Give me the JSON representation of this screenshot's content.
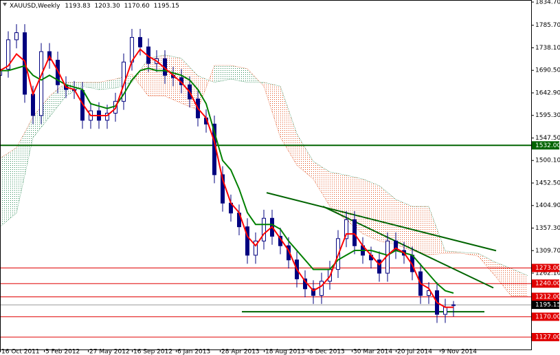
{
  "chart_data": {
    "type": "candlestick",
    "header": {
      "symbol": "XAUUSD,Weekly",
      "open": "1193.83",
      "high": "1203.30",
      "low": "1170.60",
      "close": "1195.15"
    },
    "xlim": [
      0,
      193.25
    ],
    "xticks": [
      {
        "value": 0,
        "label": "16 Oct 2011"
      },
      {
        "value": 16,
        "label": "5 Feb 2012"
      },
      {
        "value": 32,
        "label": "27 May 2012"
      },
      {
        "value": 48,
        "label": "16 Sep 2012"
      },
      {
        "value": 64,
        "label": "6 Jan 2013"
      },
      {
        "value": 80,
        "label": "28 Apr 2013"
      },
      {
        "value": 96,
        "label": "18 Aug 2013"
      },
      {
        "value": 112,
        "label": "8 Dec 2013"
      },
      {
        "value": 128,
        "label": "30 Mar 2014"
      },
      {
        "value": 144,
        "label": "20 Jul 2014"
      },
      {
        "value": 160,
        "label": "9 Nov 2014"
      }
    ],
    "ylim": [
      1100.8,
      1839.06
    ],
    "yticks": [
      {
        "value": 1834.7,
        "label": "1834.70"
      },
      {
        "value": 1785.7,
        "label": "1785.70"
      },
      {
        "value": 1738.1,
        "label": "1738.10"
      },
      {
        "value": 1690.5,
        "label": "1690.50"
      },
      {
        "value": 1642.9,
        "label": "1642.90"
      },
      {
        "value": 1595.3,
        "label": "1595.30"
      },
      {
        "value": 1547.5,
        "label": "1547.50"
      },
      {
        "value": 1500.1,
        "label": "1500.10"
      },
      {
        "value": 1452.5,
        "label": "1452.50"
      },
      {
        "value": 1404.9,
        "label": "1404.90"
      },
      {
        "value": 1357.3,
        "label": "1357.30"
      },
      {
        "value": 1309.7,
        "label": "1309.70"
      },
      {
        "value": 1262.1,
        "label": "1262.10"
      }
    ],
    "candle_color": "#00007f",
    "x": [
      0,
      3,
      6,
      9,
      12,
      15,
      18,
      21,
      24,
      27,
      30,
      33,
      36,
      39,
      42,
      45,
      48,
      51,
      54,
      57,
      60,
      63,
      66,
      69,
      72,
      75,
      78,
      81,
      84,
      87,
      90,
      93,
      96,
      99,
      102,
      105,
      108,
      111,
      114,
      117,
      120,
      123,
      126,
      129,
      132,
      135,
      138,
      141,
      144,
      147,
      150,
      153,
      156,
      159,
      162,
      165
    ],
    "open": [
      1680,
      1693,
      1755,
      1770,
      1640,
      1595,
      1730,
      1712,
      1660,
      1650,
      1648,
      1585,
      1605,
      1585,
      1600,
      1625,
      1708,
      1760,
      1740,
      1705,
      1715,
      1680,
      1675,
      1660,
      1630,
      1590,
      1577,
      1470,
      1410,
      1389,
      1360,
      1300,
      1330,
      1378,
      1340,
      1320,
      1290,
      1250,
      1229,
      1215,
      1245,
      1270,
      1335,
      1375,
      1320,
      1300,
      1290,
      1262,
      1330,
      1310,
      1300,
      1265,
      1215,
      1225,
      1175,
      1193.83
    ],
    "high": [
      1711,
      1773,
      1788,
      1788,
      1658,
      1748,
      1748,
      1730,
      1678,
      1668,
      1666,
      1623,
      1623,
      1618,
      1643,
      1726,
      1778,
      1778,
      1758,
      1733,
      1733,
      1698,
      1693,
      1678,
      1648,
      1608,
      1595,
      1488,
      1428,
      1407,
      1378,
      1348,
      1396,
      1396,
      1358,
      1338,
      1308,
      1268,
      1247,
      1263,
      1288,
      1353,
      1393,
      1393,
      1338,
      1318,
      1308,
      1348,
      1348,
      1328,
      1318,
      1283,
      1243,
      1243,
      1208,
      1203.3
    ],
    "low": [
      1662,
      1675,
      1737,
      1622,
      1577,
      1577,
      1694,
      1642,
      1632,
      1630,
      1567,
      1567,
      1567,
      1567,
      1582,
      1607,
      1690,
      1722,
      1687,
      1687,
      1662,
      1657,
      1642,
      1612,
      1572,
      1559,
      1452,
      1392,
      1371,
      1342,
      1282,
      1282,
      1312,
      1322,
      1302,
      1272,
      1232,
      1211,
      1197,
      1197,
      1227,
      1252,
      1317,
      1302,
      1282,
      1272,
      1244,
      1244,
      1292,
      1282,
      1247,
      1197,
      1197,
      1157,
      1157,
      1170.6
    ],
    "close": [
      1693,
      1755,
      1770,
      1640,
      1595,
      1730,
      1712,
      1660,
      1650,
      1648,
      1585,
      1605,
      1585,
      1600,
      1625,
      1708,
      1760,
      1740,
      1705,
      1715,
      1680,
      1675,
      1660,
      1630,
      1590,
      1577,
      1470,
      1410,
      1389,
      1360,
      1300,
      1330,
      1378,
      1340,
      1320,
      1290,
      1250,
      1229,
      1215,
      1245,
      1270,
      1335,
      1375,
      1320,
      1300,
      1290,
      1262,
      1330,
      1310,
      1300,
      1265,
      1215,
      1225,
      1175,
      1190,
      1195.15
    ],
    "tenkan": {
      "color": "#ff0000",
      "values": [
        1690,
        1700,
        1725,
        1710,
        1640,
        1680,
        1720,
        1690,
        1655,
        1650,
        1620,
        1595,
        1595,
        1595,
        1610,
        1660,
        1710,
        1735,
        1720,
        1710,
        1695,
        1680,
        1665,
        1645,
        1610,
        1590,
        1540,
        1460,
        1410,
        1390,
        1340,
        1320,
        1345,
        1360,
        1335,
        1310,
        1270,
        1245,
        1225,
        1235,
        1255,
        1300,
        1345,
        1345,
        1320,
        1300,
        1280,
        1300,
        1315,
        1305,
        1280,
        1240,
        1230,
        1200,
        1190,
        1190
      ]
    },
    "kijun": {
      "color": "#008000",
      "values": [
        1690,
        1690,
        1695,
        1700,
        1680,
        1670,
        1680,
        1670,
        1660,
        1655,
        1650,
        1620,
        1615,
        1610,
        1615,
        1640,
        1670,
        1690,
        1695,
        1690,
        1690,
        1685,
        1680,
        1670,
        1650,
        1620,
        1560,
        1500,
        1480,
        1440,
        1390,
        1365,
        1365,
        1365,
        1355,
        1330,
        1310,
        1290,
        1270,
        1270,
        1270,
        1290,
        1300,
        1310,
        1310,
        1310,
        1305,
        1300,
        1310,
        1305,
        1300,
        1280,
        1260,
        1240,
        1225,
        1220
      ]
    },
    "cloud": {
      "up_color": "#2e8b57",
      "down_color": "#e2501e",
      "x": [
        0,
        6,
        12,
        18,
        24,
        30,
        36,
        42,
        48,
        54,
        60,
        66,
        72,
        78,
        84,
        90,
        96,
        102,
        108,
        114,
        120,
        126,
        132,
        138,
        144,
        150,
        156,
        162,
        168,
        174,
        180,
        186,
        192
      ],
      "span_a": [
        1505,
        1527,
        1592,
        1636,
        1665,
        1665,
        1665,
        1672,
        1682,
        1636,
        1636,
        1621,
        1607,
        1701,
        1701,
        1694,
        1657,
        1549,
        1490,
        1461,
        1403,
        1374,
        1345,
        1330,
        1323,
        1309,
        1301,
        1304,
        1304,
        1298,
        1257,
        1214,
        1214
      ],
      "span_b": [
        1360,
        1389,
        1548,
        1592,
        1636,
        1657,
        1650,
        1653,
        1665,
        1716,
        1723,
        1716,
        1679,
        1665,
        1672,
        1665,
        1665,
        1657,
        1557,
        1498,
        1476,
        1469,
        1461,
        1447,
        1418,
        1403,
        1403,
        1309,
        1306,
        1304,
        1286,
        1272,
        1257
      ]
    },
    "trendlines": [
      {
        "color": "#006400",
        "x": [
          97,
          180.5
        ],
        "y": [
          1432,
          1309.5
        ]
      },
      {
        "color": "#006400",
        "x": [
          117.5,
          179.5
        ],
        "y": [
          1403,
          1231
        ]
      },
      {
        "color": "#006400",
        "x": [
          88,
          176.25
        ],
        "y": [
          1180.6,
          1180.6
        ]
      }
    ],
    "levels": [
      {
        "value": 1532,
        "label": "1532.00",
        "color": "#006400"
      },
      {
        "value": 1273,
        "label": "1273.00",
        "color": "#e00000"
      },
      {
        "value": 1240,
        "label": "1240.00",
        "color": "#e00000"
      },
      {
        "value": 1212,
        "label": "1212.00",
        "color": "#e00000"
      },
      {
        "value": 1195.15,
        "label": "1195.15",
        "color": "#000000"
      },
      {
        "value": 1170,
        "label": "1170.00",
        "color": "#e00000"
      },
      {
        "value": 1127,
        "label": "1127.00",
        "color": "#e00000"
      }
    ]
  }
}
